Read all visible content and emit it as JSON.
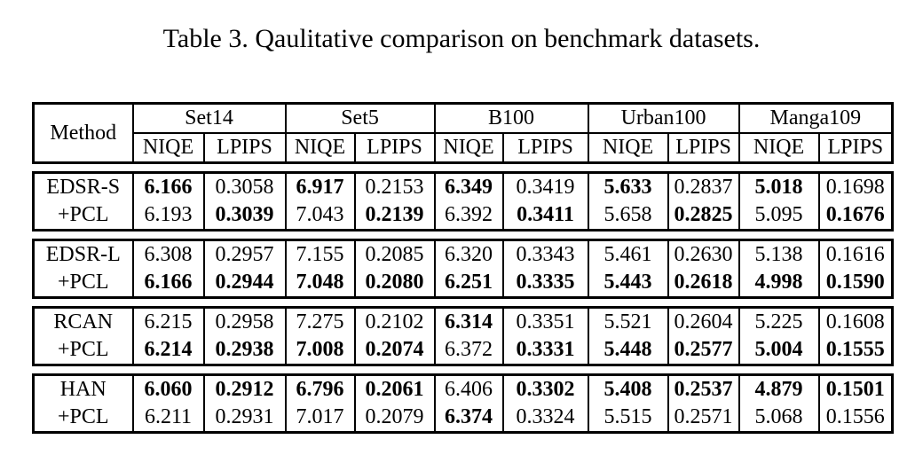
{
  "title": "Table 3. Qaulitative comparison on benchmark datasets.",
  "colors": {
    "text": "#000000",
    "background": "#ffffff",
    "rule": "#000000"
  },
  "table": {
    "method_header": "Method",
    "datasets": [
      "Set14",
      "Set5",
      "B100",
      "Urban100",
      "Manga109"
    ],
    "metrics": [
      "NIQE",
      "LPIPS"
    ],
    "groups": [
      {
        "rows": [
          {
            "method": "EDSR-S",
            "values": [
              "6.166",
              "0.3058",
              "6.917",
              "0.2153",
              "6.349",
              "0.3419",
              "5.633",
              "0.2837",
              "5.018",
              "0.1698"
            ],
            "bold": [
              true,
              false,
              true,
              false,
              true,
              false,
              true,
              false,
              true,
              false
            ]
          },
          {
            "method": "+PCL",
            "values": [
              "6.193",
              "0.3039",
              "7.043",
              "0.2139",
              "6.392",
              "0.3411",
              "5.658",
              "0.2825",
              "5.095",
              "0.1676"
            ],
            "bold": [
              false,
              true,
              false,
              true,
              false,
              true,
              false,
              true,
              false,
              true
            ]
          }
        ]
      },
      {
        "rows": [
          {
            "method": "EDSR-L",
            "values": [
              "6.308",
              "0.2957",
              "7.155",
              "0.2085",
              "6.320",
              "0.3343",
              "5.461",
              "0.2630",
              "5.138",
              "0.1616"
            ],
            "bold": [
              false,
              false,
              false,
              false,
              false,
              false,
              false,
              false,
              false,
              false
            ]
          },
          {
            "method": "+PCL",
            "values": [
              "6.166",
              "0.2944",
              "7.048",
              "0.2080",
              "6.251",
              "0.3335",
              "5.443",
              "0.2618",
              "4.998",
              "0.1590"
            ],
            "bold": [
              true,
              true,
              true,
              true,
              true,
              true,
              true,
              true,
              true,
              true
            ]
          }
        ]
      },
      {
        "rows": [
          {
            "method": "RCAN",
            "values": [
              "6.215",
              "0.2958",
              "7.275",
              "0.2102",
              "6.314",
              "0.3351",
              "5.521",
              "0.2604",
              "5.225",
              "0.1608"
            ],
            "bold": [
              false,
              false,
              false,
              false,
              true,
              false,
              false,
              false,
              false,
              false
            ]
          },
          {
            "method": "+PCL",
            "values": [
              "6.214",
              "0.2938",
              "7.008",
              "0.2074",
              "6.372",
              "0.3331",
              "5.448",
              "0.2577",
              "5.004",
              "0.1555"
            ],
            "bold": [
              true,
              true,
              true,
              true,
              false,
              true,
              true,
              true,
              true,
              true
            ]
          }
        ]
      },
      {
        "rows": [
          {
            "method": "HAN",
            "values": [
              "6.060",
              "0.2912",
              "6.796",
              "0.2061",
              "6.406",
              "0.3302",
              "5.408",
              "0.2537",
              "4.879",
              "0.1501"
            ],
            "bold": [
              true,
              true,
              true,
              true,
              false,
              true,
              true,
              true,
              true,
              true
            ]
          },
          {
            "method": "+PCL",
            "values": [
              "6.211",
              "0.2931",
              "7.017",
              "0.2079",
              "6.374",
              "0.3324",
              "5.515",
              "0.2571",
              "5.068",
              "0.1556"
            ],
            "bold": [
              false,
              false,
              false,
              false,
              true,
              false,
              false,
              false,
              false,
              false
            ]
          }
        ]
      }
    ]
  }
}
